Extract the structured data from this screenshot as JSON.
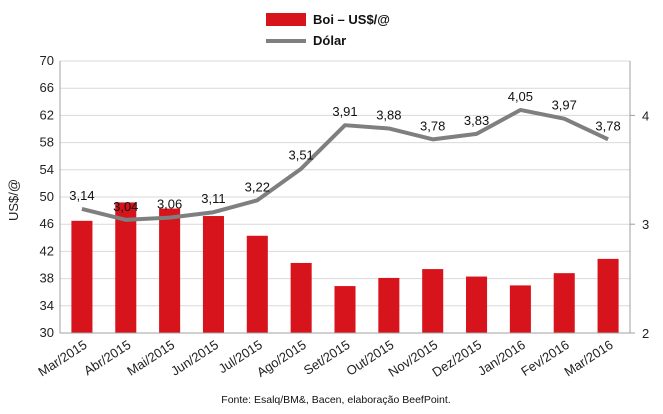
{
  "chart_data": {
    "type": "bar",
    "categories": [
      "Mar/2015",
      "Abr/2015",
      "Mai/2015",
      "Jun/2015",
      "Jul/2015",
      "Ago/2015",
      "Set/2015",
      "Out/2015",
      "Nov/2015",
      "Dez/2015",
      "Jan/2016",
      "Fev/2016",
      "Mar/2016"
    ],
    "series": [
      {
        "name": "Boi – US$/@",
        "type": "bar",
        "axis": "left",
        "color": "#d7141c",
        "values": [
          46.5,
          49.2,
          48.3,
          47.2,
          44.3,
          40.3,
          36.9,
          38.1,
          39.4,
          38.3,
          37.0,
          38.8,
          40.9
        ]
      },
      {
        "name": "Dólar",
        "type": "line",
        "axis": "right",
        "color": "#7f7f7f",
        "values": [
          3.14,
          3.04,
          3.06,
          3.11,
          3.22,
          3.51,
          3.91,
          3.88,
          3.78,
          3.83,
          4.05,
          3.97,
          3.78
        ],
        "labels": [
          "3,14",
          "3,04",
          "3,06",
          "3,11",
          "3,22",
          "3,51",
          "3,91",
          "3,88",
          "3,78",
          "3,83",
          "4,05",
          "3,97",
          "3,78"
        ]
      }
    ],
    "ylabel": "US$/@",
    "ylim": [
      30,
      70
    ],
    "yticks": [
      "30",
      "34",
      "38",
      "42",
      "46",
      "50",
      "54",
      "58",
      "62",
      "66",
      "70"
    ],
    "y2lim": [
      2,
      4.5
    ],
    "y2ticks": [
      "2",
      "3",
      "4"
    ],
    "grid": true,
    "legend_position": "top-center",
    "source": "Fonte: Esalq/BM&, Bacen, elaboração BeefPoint."
  }
}
